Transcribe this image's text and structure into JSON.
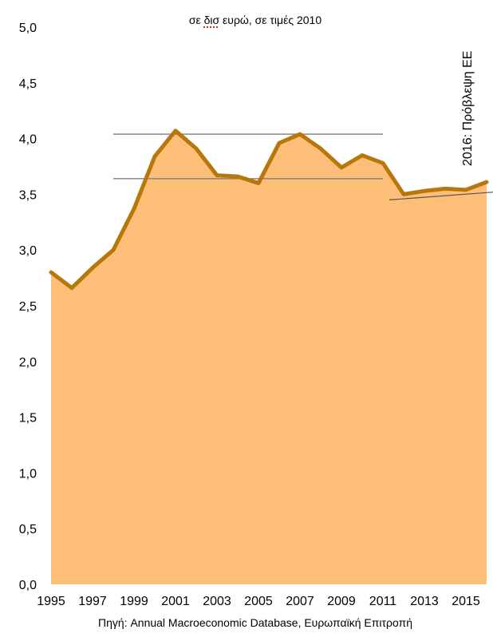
{
  "chart_data": {
    "type": "area",
    "subtitle_parts": [
      "σε ",
      "δισ",
      " ευρώ, σε τιμές 2010"
    ],
    "source": "Πηγή: Annual Macroeconomic Database, Ευρωπαϊκή Επιτροπή",
    "annotation": "2016: Πρόβλεψη ΕΕ",
    "x": [
      1995,
      1996,
      1997,
      1998,
      1999,
      2000,
      2001,
      2002,
      2003,
      2004,
      2005,
      2006,
      2007,
      2008,
      2009,
      2010,
      2011,
      2012,
      2013,
      2014,
      2015,
      2016
    ],
    "values": [
      2.8,
      2.66,
      2.84,
      3.0,
      3.37,
      3.84,
      4.07,
      3.91,
      3.67,
      3.66,
      3.6,
      3.96,
      4.04,
      3.91,
      3.74,
      3.85,
      3.78,
      3.5,
      3.53,
      3.55,
      3.54,
      3.61
    ],
    "x_tick_labels": [
      "1995",
      "1997",
      "1999",
      "2001",
      "2003",
      "2005",
      "2007",
      "2009",
      "2011",
      "2013",
      "2015"
    ],
    "y_tick_labels": [
      "0,0",
      "0,5",
      "1,0",
      "1,5",
      "2,0",
      "2,5",
      "3,0",
      "3,5",
      "4,0",
      "4,5",
      "5,0"
    ],
    "ylim": [
      0,
      5
    ],
    "grid": false,
    "reference_lines": [
      {
        "x": [
          1998,
          2011
        ],
        "y": [
          4.04,
          4.04
        ]
      },
      {
        "x": [
          1998,
          2011
        ],
        "y": [
          3.64,
          3.64
        ]
      },
      {
        "x": [
          2011.3,
          2017.8
        ],
        "y": [
          3.45,
          3.54
        ]
      }
    ],
    "colors": {
      "area": "#fdbe78",
      "line": "#b8770b",
      "reference": "#7f7f7f",
      "trend": "#555555"
    }
  }
}
